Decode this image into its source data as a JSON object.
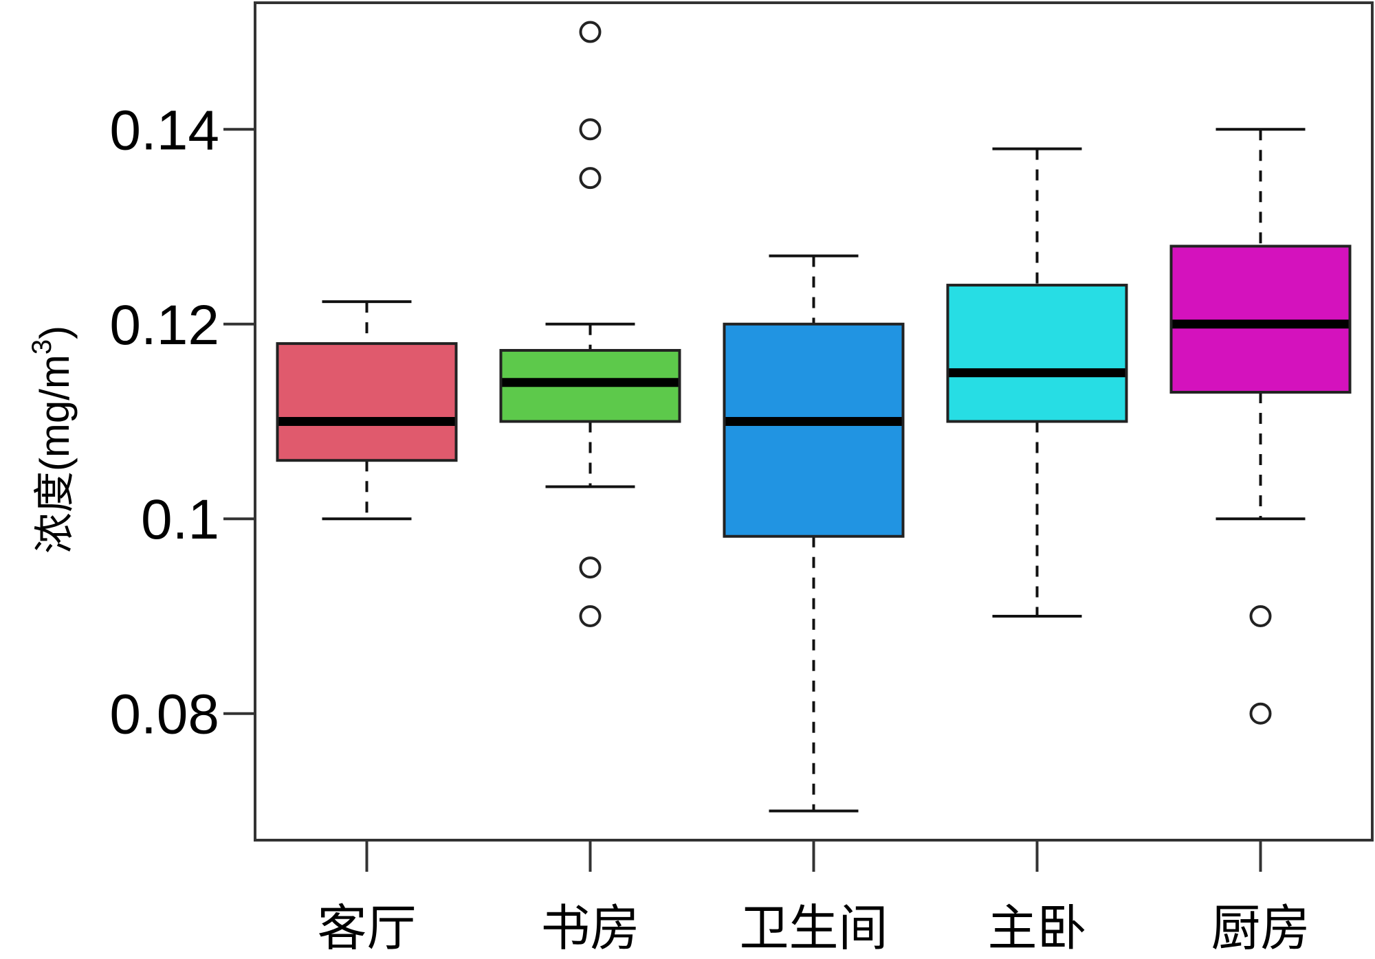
{
  "chart_data": {
    "type": "box",
    "title": "",
    "xlabel": "",
    "ylabel": {
      "prefix": "浓度",
      "unit": "(mg/m",
      "superscript": "3",
      "suffix": ")"
    },
    "ylim": [
      0.067,
      0.153
    ],
    "yticks": [
      {
        "value": 0.08,
        "label": "0.08"
      },
      {
        "value": 0.1,
        "label": "0.1"
      },
      {
        "value": 0.12,
        "label": "0.12"
      },
      {
        "value": 0.14,
        "label": "0.14"
      }
    ],
    "categories": [
      "客厅",
      "书房",
      "卫生间",
      "主卧",
      "厨房"
    ],
    "series": [
      {
        "category": "客厅",
        "color": "#e05a6d",
        "whisker_low": 0.1,
        "q1": 0.106,
        "median": 0.11,
        "q3": 0.118,
        "whisker_high": 0.1223,
        "outliers": []
      },
      {
        "category": "书房",
        "color": "#5dc94b",
        "whisker_low": 0.1033,
        "q1": 0.11,
        "median": 0.114,
        "q3": 0.1173,
        "whisker_high": 0.12,
        "outliers": [
          0.09,
          0.095,
          0.135,
          0.14,
          0.15
        ]
      },
      {
        "category": "卫生间",
        "color": "#2194e2",
        "whisker_low": 0.07,
        "q1": 0.0982,
        "median": 0.11,
        "q3": 0.12,
        "whisker_high": 0.127,
        "outliers": []
      },
      {
        "category": "主卧",
        "color": "#27dde4",
        "whisker_low": 0.09,
        "q1": 0.11,
        "median": 0.115,
        "q3": 0.124,
        "whisker_high": 0.138,
        "outliers": []
      },
      {
        "category": "厨房",
        "color": "#d412bd",
        "whisker_low": 0.1,
        "q1": 0.113,
        "median": 0.12,
        "q3": 0.128,
        "whisker_high": 0.14,
        "outliers": [
          0.08,
          0.09
        ]
      }
    ]
  }
}
